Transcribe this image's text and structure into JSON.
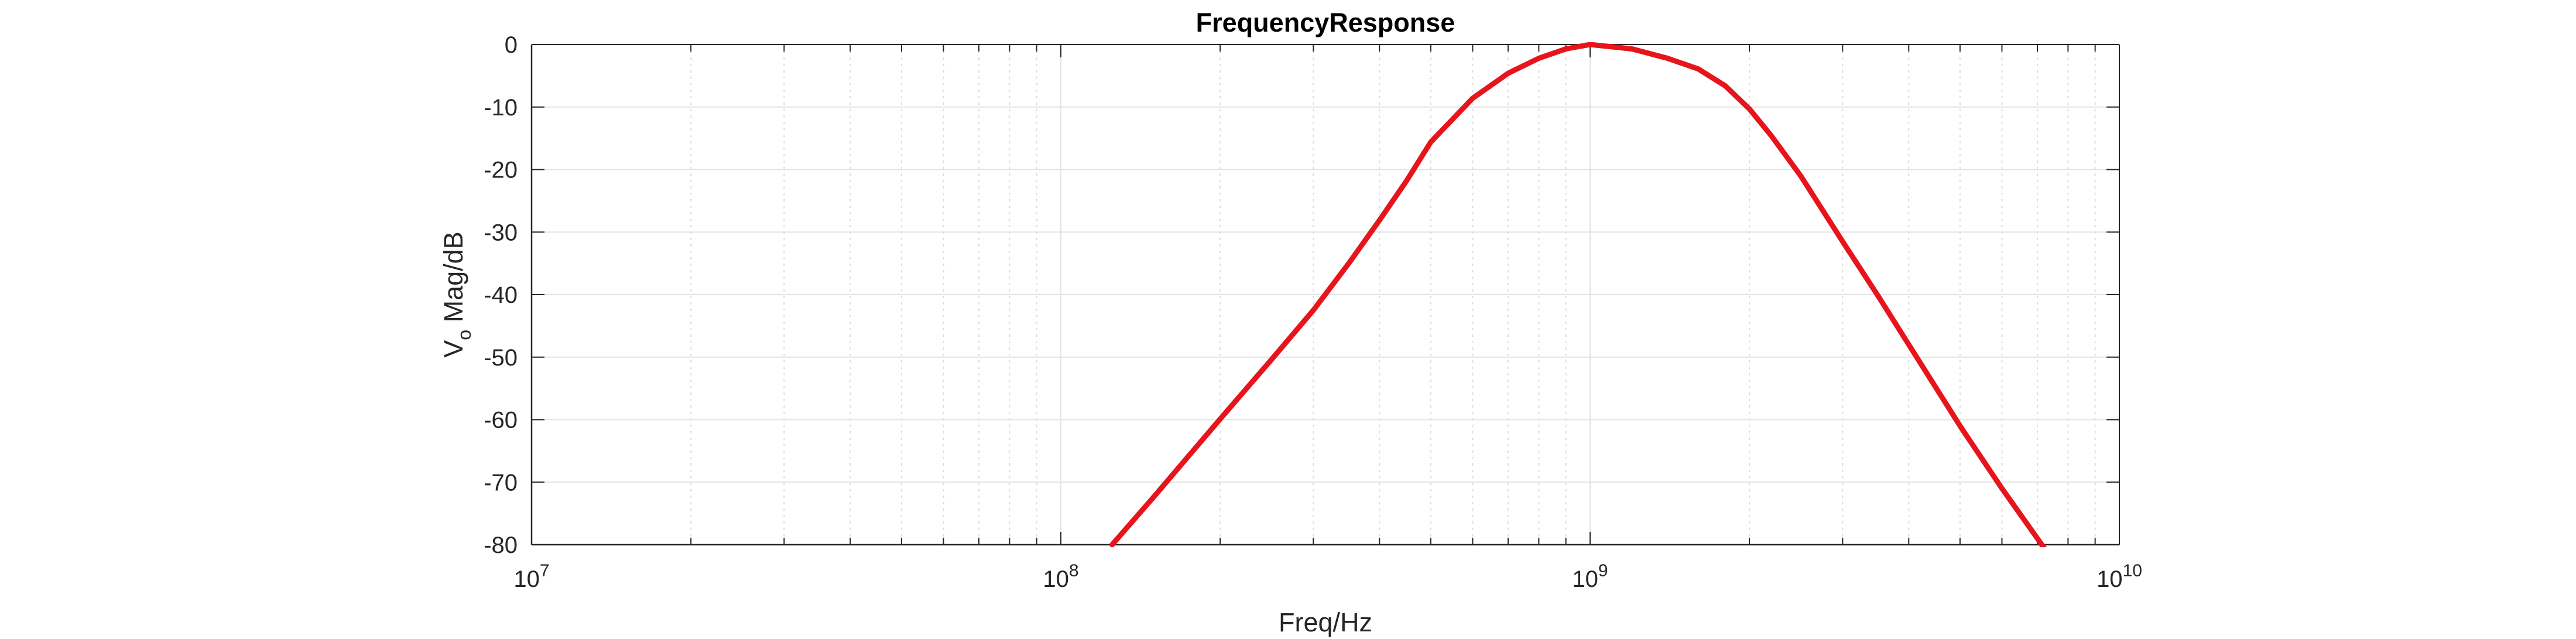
{
  "chart_data": {
    "type": "line",
    "title": "FrequencyResponse",
    "xlabel": "Freq/Hz",
    "ylabel_main": "V",
    "ylabel_sub": "o",
    "ylabel_rest": " Mag/dB",
    "xscale": "log",
    "xlim": [
      10000000,
      10000000000
    ],
    "ylim": [
      -80,
      0
    ],
    "grid": true,
    "x_ticks": [
      {
        "base": "10",
        "exp": "7"
      },
      {
        "base": "10",
        "exp": "8"
      },
      {
        "base": "10",
        "exp": "9"
      },
      {
        "base": "10",
        "exp": "10"
      }
    ],
    "y_ticks": [
      "0",
      "-10",
      "-20",
      "-30",
      "-40",
      "-50",
      "-60",
      "-70",
      "-80"
    ],
    "series": [
      {
        "color": "#e8141c",
        "x": [
          125000000,
          150000000,
          200000000,
          250000000,
          300000000,
          350000000,
          400000000,
          450000000,
          500000000,
          600000000,
          700000000,
          800000000,
          900000000,
          1000000000,
          1200000000,
          1400000000,
          1600000000,
          1800000000,
          2000000000,
          2200000000,
          2500000000,
          3000000000,
          3500000000,
          4000000000,
          5000000000,
          6000000000,
          7000000000,
          8000000000
        ],
        "y": [
          -80,
          -72.3,
          -59.9,
          -50.4,
          -42.5,
          -35.0,
          -28.1,
          -21.8,
          -15.6,
          -8.6,
          -4.6,
          -2.2,
          -0.7,
          0,
          -0.7,
          -2.2,
          -3.9,
          -6.6,
          -10.3,
          -14.6,
          -21.0,
          -31.5,
          -40.2,
          -48.0,
          -61.0,
          -71.0,
          -79.0,
          -86.0
        ]
      }
    ]
  }
}
